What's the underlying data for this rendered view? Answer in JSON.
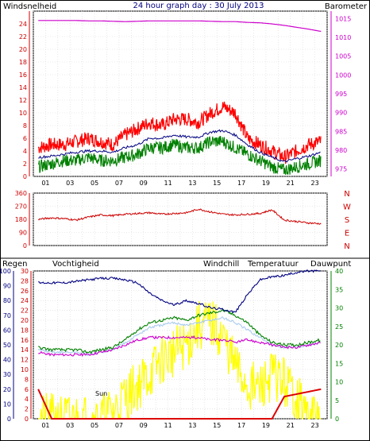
{
  "header": {
    "left_label": "Windsnelheid",
    "title": "24 hour graph day : 30 July 2013",
    "right_label": "Barometer"
  },
  "colors": {
    "wind_gust": "#ff0000",
    "wind_avg": "#000080",
    "wind_low": "#008000",
    "barometer": "#cc00cc",
    "direction": "#cc0000",
    "humidity": "#000080",
    "windchill": "#aaccee",
    "temperature": "#008000",
    "dewpoint": "#cc00cc",
    "solar": "#ffff00",
    "rain": "#dd0000",
    "axis_red": "#cc0000",
    "axis_navy": "#000080",
    "axis_green": "#008000",
    "axis_purple": "#cc00cc"
  },
  "bottom_legend": {
    "rain": "Regen",
    "humidity": "Vochtigheid",
    "windchill": "Windchill",
    "temperature": "Temperatuur",
    "dewpoint": "Dauwpunt",
    "sun_label": "Sun"
  },
  "direction_labels": [
    "N",
    "W",
    "S",
    "E",
    "N"
  ],
  "chart_data": [
    {
      "type": "line",
      "x_ticks": [
        "01",
        "03",
        "05",
        "07",
        "09",
        "11",
        "13",
        "15",
        "17",
        "19",
        "21",
        "23"
      ],
      "xlim": [
        0,
        24
      ],
      "ylim": [
        0,
        26
      ],
      "y_ticks": [
        "0",
        "2",
        "4",
        "6",
        "8",
        "10",
        "12",
        "14",
        "16",
        "18",
        "20",
        "22",
        "24"
      ],
      "y2lim": [
        973,
        1017
      ],
      "y2_ticks": [
        "975",
        "980",
        "985",
        "990",
        "995",
        "1000",
        "1005",
        "1010",
        "1015"
      ],
      "x": [
        0.4,
        1.5,
        2.5,
        3.5,
        4.5,
        5.5,
        6.5,
        7.5,
        8.5,
        9.5,
        10.5,
        11.5,
        12.5,
        13.5,
        14.5,
        15.5,
        16.5,
        17.5,
        18.5,
        19.5,
        20.5,
        21.5,
        22.5,
        23.5
      ],
      "series": [
        {
          "key": "gust",
          "values": [
            4.5,
            5,
            5,
            5.5,
            6,
            5.5,
            5,
            6.5,
            7.5,
            8.5,
            8,
            9,
            9,
            8.5,
            10,
            11,
            10,
            6,
            5,
            4,
            3,
            4,
            5,
            5.5
          ]
        },
        {
          "key": "avg",
          "values": [
            3,
            3.2,
            3.5,
            3.8,
            4,
            4,
            3.8,
            4.5,
            5,
            6,
            6,
            6.5,
            6.2,
            6.2,
            7,
            7.2,
            6.5,
            5,
            3.8,
            3,
            2.3,
            2.8,
            3.2,
            3.8
          ]
        },
        {
          "key": "low",
          "values": [
            1.5,
            2,
            2.5,
            2.5,
            3,
            2.5,
            2.5,
            3,
            3.5,
            4.5,
            4.5,
            5,
            4.5,
            4.5,
            5.5,
            5.5,
            4.5,
            3.5,
            2.5,
            1.5,
            1,
            1.5,
            2,
            2.5
          ]
        },
        {
          "key": "barometer",
          "values": [
            1014.5,
            1014.5,
            1014.5,
            1014.5,
            1014.4,
            1014.4,
            1014.3,
            1014.2,
            1014.3,
            1014.4,
            1014.4,
            1014.4,
            1014.4,
            1014.4,
            1014.3,
            1014.2,
            1014.2,
            1014.0,
            1013.9,
            1013.6,
            1013.2,
            1012.7,
            1012.2,
            1011.6
          ]
        }
      ]
    },
    {
      "type": "line",
      "x_ticks": [],
      "xlim": [
        0,
        24
      ],
      "ylim": [
        0,
        360
      ],
      "y_ticks": [
        "0",
        "90",
        "180",
        "270",
        "360"
      ],
      "x": [
        0.4,
        1.5,
        2.5,
        3.5,
        4.5,
        5.5,
        6.5,
        7.5,
        8.5,
        9.5,
        10.5,
        11.5,
        12.5,
        13.5,
        14.5,
        15.5,
        16.5,
        17.5,
        18.5,
        19.5,
        20.5,
        21.5,
        22.5,
        23.5
      ],
      "series": [
        {
          "key": "direction",
          "values": [
            180,
            190,
            185,
            175,
            195,
            210,
            205,
            215,
            220,
            225,
            215,
            220,
            225,
            250,
            230,
            215,
            210,
            215,
            220,
            245,
            175,
            165,
            155,
            150
          ]
        }
      ]
    },
    {
      "type": "line",
      "x_ticks": [
        "01",
        "03",
        "05",
        "07",
        "09",
        "11",
        "13",
        "15",
        "17",
        "19",
        "21",
        "23"
      ],
      "xlim": [
        0,
        24
      ],
      "ylim": [
        0,
        100
      ],
      "y_ticks": [
        "0",
        "10",
        "20",
        "30",
        "40",
        "50",
        "60",
        "70",
        "80",
        "90",
        "100"
      ],
      "y2lim": [
        0,
        30
      ],
      "y2_ticks": [
        "0",
        "2",
        "4",
        "6",
        "8",
        "10",
        "12",
        "14",
        "16",
        "18",
        "20",
        "22",
        "24",
        "26",
        "28",
        "30"
      ],
      "y3lim": [
        0,
        40
      ],
      "y3_ticks": [
        "0",
        "5",
        "10",
        "15",
        "20",
        "25",
        "30",
        "35",
        "40"
      ],
      "x": [
        0.4,
        1.5,
        2.5,
        3.5,
        4.5,
        5.5,
        6.5,
        7.5,
        8.5,
        9.5,
        10.5,
        11.5,
        12.5,
        13.5,
        14.5,
        15.5,
        16.5,
        17.5,
        18.5,
        19.5,
        20.5,
        21.5,
        22.5,
        23.5
      ],
      "series": [
        {
          "key": "humidity",
          "values": [
            92,
            92,
            92,
            93,
            94,
            95,
            95,
            94,
            92,
            85,
            80,
            77,
            80,
            78,
            75,
            74,
            72,
            84,
            94,
            96,
            97,
            99,
            100,
            100
          ]
        },
        {
          "key": "windchill",
          "values": [
            14,
            13.5,
            13.5,
            13.5,
            13,
            13.5,
            14,
            15.5,
            17,
            18.5,
            19,
            19.5,
            19,
            19.5,
            20,
            20.5,
            19.5,
            18,
            16.5,
            15,
            14.5,
            14.5,
            15,
            15.5
          ]
        },
        {
          "key": "temperature",
          "values": [
            14.5,
            14,
            14,
            14,
            13.5,
            14,
            14.5,
            16,
            18,
            19.5,
            20,
            20.5,
            20,
            21,
            21.5,
            22,
            21,
            19.5,
            17,
            15.5,
            15,
            15,
            15.5,
            16
          ]
        },
        {
          "key": "dewpoint",
          "values": [
            13.5,
            13,
            13,
            13,
            13,
            13.5,
            14,
            15,
            16,
            16.5,
            16.5,
            16.5,
            16.5,
            16.5,
            16,
            16,
            15.5,
            16,
            15.5,
            15,
            14.5,
            14.5,
            15,
            15.5
          ]
        },
        {
          "key": "solar",
          "values": [
            0,
            0,
            0,
            0,
            0,
            0,
            2,
            6,
            9,
            12,
            16,
            18,
            20,
            25,
            26,
            22,
            14,
            9,
            8,
            12,
            10,
            6,
            0,
            0
          ]
        },
        {
          "key": "rain",
          "values": [
            6,
            0,
            0,
            0,
            0,
            0,
            0,
            0,
            0,
            0,
            0,
            0,
            0,
            0,
            0,
            0,
            0,
            0,
            0,
            0,
            4.5,
            5,
            5.5,
            6
          ]
        }
      ]
    }
  ]
}
